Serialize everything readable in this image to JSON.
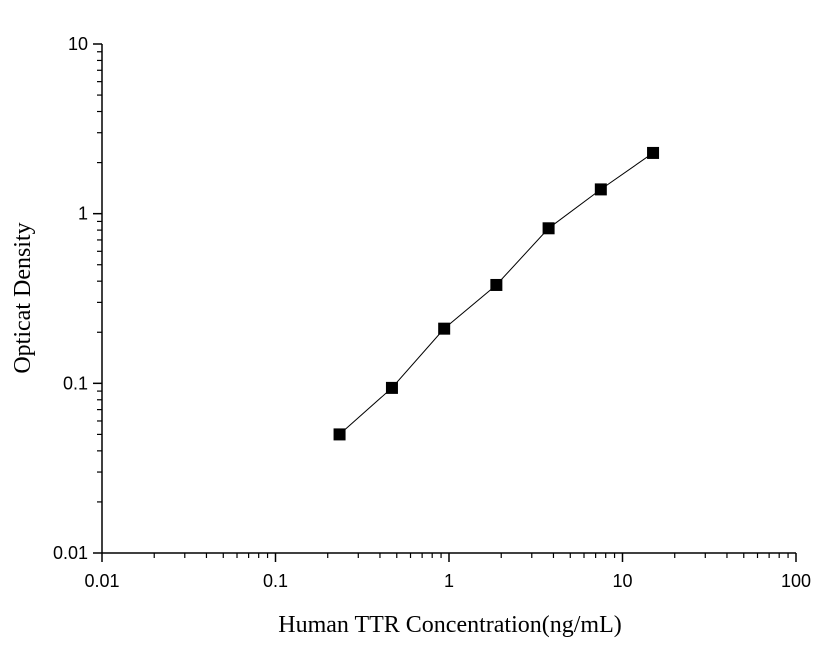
{
  "chart_data": {
    "type": "scatter",
    "title": "",
    "xlabel": "Human TTR  Concentration(ng/mL)",
    "ylabel": "Opticat Density",
    "xscale": "log",
    "yscale": "log",
    "xlim": [
      0.01,
      100
    ],
    "ylim": [
      0.01,
      10
    ],
    "xticks": [
      0.01,
      0.1,
      1,
      10,
      100
    ],
    "xtick_labels": [
      "0.01",
      "0.1",
      "1",
      "10",
      "100"
    ],
    "yticks": [
      0.01,
      0.1,
      1,
      10
    ],
    "ytick_labels": [
      "0.01",
      "0.1",
      "1",
      "10"
    ],
    "grid": false,
    "legend": "none",
    "series": [
      {
        "x": [
          0.234,
          0.469,
          0.938,
          1.875,
          3.75,
          7.5,
          15
        ],
        "y": [
          0.05,
          0.094,
          0.21,
          0.38,
          0.82,
          1.39,
          2.28
        ],
        "marker": "square",
        "line": true,
        "color": "#000000"
      }
    ]
  }
}
